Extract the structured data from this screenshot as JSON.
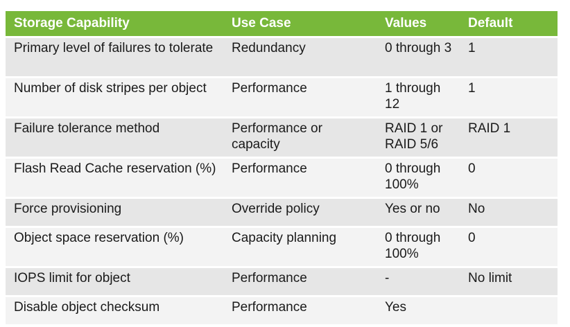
{
  "table": {
    "headers": [
      "Storage Capability",
      "Use Case",
      "Values",
      "Default"
    ],
    "rows": [
      [
        "Primary level of failures to tolerate",
        "Redundancy",
        "0 through 3",
        "1"
      ],
      [
        "Number of disk stripes per object",
        "Performance",
        "1 through 12",
        "1"
      ],
      [
        "Failure tolerance method",
        "Performance or capacity",
        "RAID 1 or RAID 5/6",
        "RAID 1"
      ],
      [
        "Flash Read Cache reservation (%)",
        "Performance",
        "0 through 100%",
        "0"
      ],
      [
        "Force provisioning",
        "Override policy",
        "Yes or no",
        "No"
      ],
      [
        "Object space reservation (%)",
        "Capacity planning",
        "0 through 100%",
        "0"
      ],
      [
        "IOPS limit for object",
        "Performance",
        "-",
        "No limit"
      ],
      [
        "Disable object checksum",
        "Performance",
        "Yes",
        ""
      ]
    ]
  },
  "colors": {
    "header_bg": "#78b83a",
    "header_text": "#ffffff",
    "row_odd": "#e6e6e6",
    "row_even": "#f3f3f3"
  }
}
